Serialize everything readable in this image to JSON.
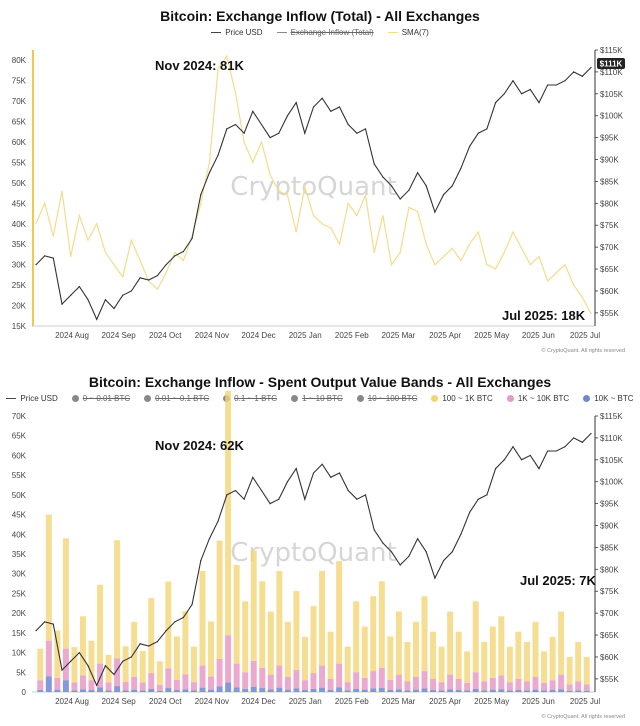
{
  "charts": [
    {
      "title": "Bitcoin: Exchange Inflow (Total) - All Exchanges",
      "legend": [
        {
          "label": "Price USD",
          "struck": false,
          "kind": "line",
          "color": "#444444"
        },
        {
          "label": "Exchange Inflow (Total)",
          "struck": true,
          "kind": "line",
          "color": "#888888"
        },
        {
          "label": "SMA(7)",
          "struck": false,
          "kind": "line",
          "color": "#f3dc8c"
        }
      ],
      "annotations": [
        "Nov 2024: 81K",
        "Jul 2025: 18K"
      ],
      "price_badge": "$111K",
      "watermark": "CryptoQuant",
      "copyright": "© CryptoQuant. All rights reserved"
    },
    {
      "title": "Bitcoin: Exchange Inflow - Spent Output Value Bands - All Exchanges",
      "legend": [
        {
          "label": "Price USD",
          "struck": false,
          "kind": "line",
          "color": "#444444"
        },
        {
          "label": "0 ~ 0.01 BTC",
          "struck": true,
          "kind": "dot",
          "color": "#888888"
        },
        {
          "label": "0.01 ~ 0.1 BTC",
          "struck": true,
          "kind": "dot",
          "color": "#888888"
        },
        {
          "label": "0.1 ~ 1 BTC",
          "struck": true,
          "kind": "dot",
          "color": "#888888"
        },
        {
          "label": "1 ~ 10 BTC",
          "struck": true,
          "kind": "dot",
          "color": "#888888"
        },
        {
          "label": "10 ~ 100 BTC",
          "struck": true,
          "kind": "dot",
          "color": "#888888"
        },
        {
          "label": "100 ~ 1K BTC",
          "struck": false,
          "kind": "dot",
          "color": "#f2d675"
        },
        {
          "label": "1K ~ 10K BTC",
          "struck": false,
          "kind": "dot",
          "color": "#e89ac6"
        },
        {
          "label": "10K ~ BTC",
          "struck": false,
          "kind": "dot",
          "color": "#6f86d6"
        }
      ],
      "annotations": [
        "Nov 2024: 62K",
        "Jul 2025: 7K"
      ],
      "watermark": "CryptoQuant",
      "copyright": "© CryptoQuant. All rights reserved"
    }
  ],
  "chart_data": [
    {
      "type": "line",
      "title": "Bitcoin: Exchange Inflow (Total) - All Exchanges",
      "x_ticks": [
        "2024 Aug",
        "2024 Sep",
        "2024 Oct",
        "2024 Nov",
        "2024 Dec",
        "2025 Jan",
        "2025 Feb",
        "2025 Mar",
        "2025 Apr",
        "2025 May",
        "2025 Jun",
        "2025 Jul"
      ],
      "y_left_ticks": [
        "15K",
        "20K",
        "25K",
        "30K",
        "35K",
        "40K",
        "45K",
        "50K",
        "55K",
        "60K",
        "65K",
        "70K",
        "75K",
        "80K"
      ],
      "y_left_range": [
        15000,
        82500
      ],
      "y_right_ticks": [
        "$55K",
        "$60K",
        "$65K",
        "$70K",
        "$75K",
        "$80K",
        "$85K",
        "$90K",
        "$95K",
        "$100K",
        "$105K",
        "$110K",
        "$115K"
      ],
      "y_right_range": [
        52000,
        115000
      ],
      "series": [
        {
          "name": "Price USD",
          "axis": "right",
          "values": [
            66000,
            68000,
            67500,
            57000,
            59000,
            61000,
            58000,
            53500,
            58000,
            56000,
            59000,
            60000,
            63000,
            62500,
            63500,
            66000,
            68000,
            69000,
            72000,
            82000,
            87000,
            91000,
            97000,
            98000,
            96000,
            101000,
            98000,
            95000,
            96000,
            100000,
            103000,
            96000,
            102000,
            104000,
            101000,
            102000,
            98000,
            96000,
            97000,
            89000,
            86000,
            84000,
            81000,
            83000,
            87000,
            84000,
            78000,
            82000,
            84000,
            88000,
            93000,
            96000,
            97000,
            103000,
            105000,
            108000,
            105000,
            106000,
            103000,
            107000,
            107000,
            108000,
            110000,
            109000,
            111000
          ]
        },
        {
          "name": "SMA(7)",
          "axis": "left",
          "values": [
            40000,
            45000,
            37000,
            48000,
            32000,
            42000,
            36000,
            40000,
            33000,
            30000,
            27000,
            36000,
            31000,
            26000,
            24000,
            28000,
            33000,
            31000,
            37000,
            45000,
            55000,
            78000,
            81000,
            72000,
            60000,
            55000,
            60000,
            52000,
            48000,
            47000,
            38000,
            49000,
            42000,
            40000,
            39000,
            35000,
            45000,
            42000,
            47000,
            33000,
            42000,
            30000,
            33000,
            44000,
            43000,
            35000,
            30000,
            32000,
            34000,
            31000,
            35000,
            38000,
            30000,
            29000,
            33000,
            38000,
            34000,
            30000,
            32000,
            26000,
            28000,
            30000,
            25000,
            22000,
            18000
          ]
        }
      ]
    },
    {
      "type": "bar",
      "title": "Bitcoin: Exchange Inflow - Spent Output Value Bands - All Exchanges",
      "x_ticks": [
        "2024 Aug",
        "2024 Sep",
        "2024 Oct",
        "2024 Nov",
        "2024 Dec",
        "2025 Jan",
        "2025 Feb",
        "2025 Mar",
        "2025 Apr",
        "2025 May",
        "2025 Jun",
        "2025 Jul"
      ],
      "y_left_ticks": [
        "0",
        "5K",
        "10K",
        "15K",
        "20K",
        "25K",
        "30K",
        "35K",
        "40K",
        "45K",
        "50K",
        "55K",
        "60K",
        "65K",
        "70K"
      ],
      "y_left_range": [
        0,
        70000
      ],
      "y_right_ticks": [
        "$55K",
        "$60K",
        "$65K",
        "$70K",
        "$75K",
        "$80K",
        "$85K",
        "$90K",
        "$95K",
        "$100K",
        "$105K",
        "$110K",
        "$115K"
      ],
      "y_right_range": [
        52000,
        115000
      ],
      "series": [
        {
          "name": "100 ~ 1K BTC",
          "stack": true,
          "values": [
            8000,
            32000,
            12000,
            28000,
            9000,
            15000,
            10000,
            20000,
            7000,
            30000,
            9000,
            14000,
            8000,
            19000,
            6000,
            22000,
            11000,
            16000,
            9000,
            24000,
            14000,
            30000,
            62000,
            25000,
            18000,
            28000,
            22000,
            16000,
            24000,
            14000,
            20000,
            11000,
            17000,
            24000,
            12000,
            26000,
            9000,
            18000,
            13000,
            19000,
            22000,
            11000,
            16000,
            10000,
            14000,
            19000,
            12000,
            9000,
            16000,
            12000,
            8000,
            18000,
            10000,
            13000,
            15000,
            9000,
            12000,
            10000,
            14000,
            8000,
            11000,
            16000,
            7000,
            10000,
            7000
          ]
        },
        {
          "name": "1K ~ 10K BTC",
          "stack": true,
          "values": [
            2500,
            9000,
            3000,
            8000,
            2000,
            3500,
            2500,
            6000,
            2000,
            7000,
            2200,
            3200,
            2000,
            4000,
            1500,
            5000,
            2600,
            3800,
            2100,
            5600,
            3300,
            7000,
            12000,
            6000,
            4200,
            6600,
            5100,
            3700,
            5600,
            3200,
            4700,
            2500,
            4000,
            5600,
            2800,
            6000,
            2100,
            4200,
            3000,
            4400,
            5100,
            2600,
            3700,
            2300,
            3200,
            4400,
            2800,
            2100,
            3700,
            2800,
            1900,
            4200,
            2300,
            3000,
            3500,
            2100,
            2800,
            2300,
            3200,
            1900,
            2500,
            3700,
            1600,
            2300,
            1600
          ]
        },
        {
          "name": "10K ~ BTC",
          "stack": true,
          "values": [
            500,
            4000,
            600,
            3000,
            400,
            700,
            500,
            1200,
            400,
            1500,
            400,
            600,
            400,
            800,
            300,
            1000,
            500,
            700,
            400,
            1100,
            600,
            1400,
            2400,
            1200,
            800,
            1300,
            1000,
            700,
            1100,
            600,
            900,
            500,
            800,
            1100,
            500,
            1200,
            400,
            800,
            600,
            900,
            1000,
            500,
            700,
            400,
            600,
            900,
            500,
            400,
            700,
            500,
            400,
            800,
            400,
            600,
            700,
            400,
            500,
            400,
            600,
            400,
            500,
            700,
            300,
            400,
            300
          ]
        },
        {
          "name": "Price USD",
          "axis": "right",
          "values": [
            66000,
            68000,
            67500,
            57000,
            59000,
            61000,
            58000,
            53500,
            58000,
            56000,
            59000,
            60000,
            63000,
            62500,
            63500,
            66000,
            68000,
            69000,
            72000,
            82000,
            87000,
            91000,
            97000,
            98000,
            96000,
            101000,
            98000,
            95000,
            96000,
            100000,
            103000,
            96000,
            102000,
            104000,
            101000,
            102000,
            98000,
            96000,
            97000,
            89000,
            86000,
            84000,
            81000,
            83000,
            87000,
            84000,
            78000,
            82000,
            84000,
            88000,
            93000,
            96000,
            97000,
            103000,
            105000,
            108000,
            105000,
            106000,
            103000,
            107000,
            107000,
            108000,
            110000,
            109000,
            111000
          ]
        }
      ]
    }
  ]
}
